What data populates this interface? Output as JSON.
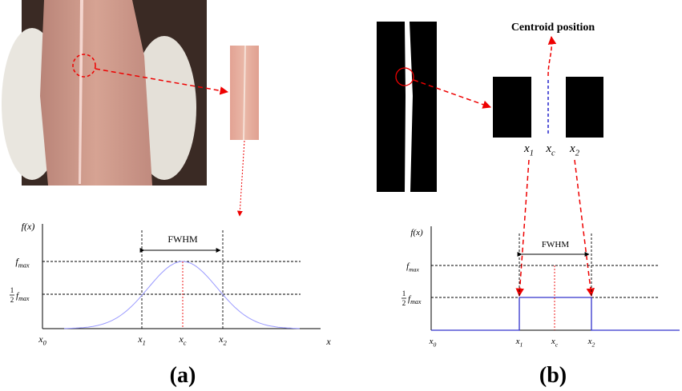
{
  "panel_a": {
    "caption": "(a)",
    "plot": {
      "y_label": "f(x)",
      "f_max": {
        "base": "f",
        "sub": "max"
      },
      "half_f_max": {
        "num": "1",
        "den": "2",
        "base": "f",
        "sub": "max"
      },
      "fwhm": "FWHM",
      "x_ticks": [
        {
          "base": "x",
          "sub": "0"
        },
        {
          "base": "x",
          "sub": "1"
        },
        {
          "base": "x",
          "sub": "c"
        },
        {
          "base": "x",
          "sub": "2"
        }
      ],
      "x_label": "x"
    }
  },
  "panel_b": {
    "caption": "(b)",
    "centroid_label": "Centroid position",
    "image_labels": [
      {
        "base": "x",
        "sub": "1"
      },
      {
        "base": "x",
        "sub": "c"
      },
      {
        "base": "x",
        "sub": "2"
      }
    ],
    "plot": {
      "y_label": "f(x)",
      "f_max": {
        "base": "f",
        "sub": "max"
      },
      "half_f_max": {
        "num": "1",
        "den": "2",
        "base": "f",
        "sub": "max"
      },
      "fwhm": "FWHM",
      "x_ticks": [
        {
          "base": "x",
          "sub": "0"
        },
        {
          "base": "x",
          "sub": "1"
        },
        {
          "base": "x",
          "sub": "c"
        },
        {
          "base": "x",
          "sub": "2"
        }
      ]
    }
  }
}
